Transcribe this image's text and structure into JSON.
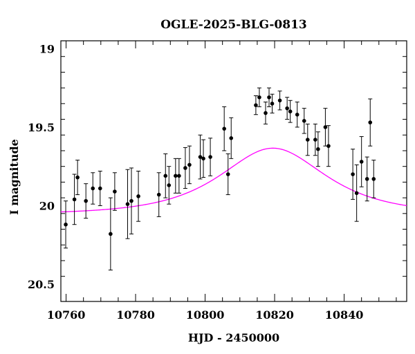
{
  "chart_data": {
    "type": "scatter",
    "title": "OGLE-2025-BLG-0813",
    "xlabel": "HJD - 2450000",
    "ylabel": "I magnitude",
    "xlim": [
      10758.5,
      10858
    ],
    "ylim": [
      20.61,
      18.95
    ],
    "y_inverted": true,
    "grid": false,
    "x_ticks": [
      10760,
      10780,
      10800,
      10820,
      10840
    ],
    "y_ticks": [
      19,
      19.5,
      20,
      20.5
    ],
    "x_tick_labels": [
      "10760",
      "10780",
      "10800",
      "10820",
      "10840"
    ],
    "y_tick_labels": [
      "19",
      "19.5",
      "20",
      "20.5"
    ],
    "colors": {
      "points": "#000000",
      "model": "#ff00ff"
    },
    "series": [
      {
        "kind": "points",
        "x": [
          10759.9,
          10762.4,
          10763.3,
          10765.7,
          10767.7,
          10769.8,
          10772.8,
          10774.0,
          10777.7,
          10778.8,
          10780.8,
          10786.7,
          10788.6,
          10789.6,
          10791.5,
          10792.5,
          10794.3,
          10795.5,
          10798.6,
          10799.5,
          10801.5,
          10805.5,
          10806.6,
          10807.5,
          10814.6,
          10815.6,
          10817.4,
          10818.4,
          10819.3,
          10821.5,
          10823.6,
          10824.5,
          10826.5,
          10828.5,
          10829.5,
          10831.7,
          10832.5,
          10834.6,
          10835.5,
          10842.5,
          10843.6,
          10845.0,
          10846.6,
          10847.5,
          10848.5
        ],
        "y": [
          20.12,
          19.96,
          19.82,
          19.97,
          19.89,
          19.89,
          20.18,
          19.91,
          19.99,
          19.97,
          19.94,
          19.93,
          19.81,
          19.87,
          19.81,
          19.81,
          19.76,
          19.74,
          19.69,
          19.7,
          19.69,
          19.51,
          19.8,
          19.57,
          19.36,
          19.31,
          19.41,
          19.31,
          19.35,
          19.33,
          19.38,
          19.4,
          19.42,
          19.46,
          19.58,
          19.58,
          19.64,
          19.5,
          19.62,
          19.8,
          19.92,
          19.72,
          19.83,
          19.47,
          19.83
        ],
        "err": [
          0.15,
          0.16,
          0.11,
          0.11,
          0.1,
          0.11,
          0.23,
          0.12,
          0.22,
          0.21,
          0.16,
          0.14,
          0.14,
          0.12,
          0.11,
          0.11,
          0.13,
          0.12,
          0.14,
          0.12,
          0.12,
          0.14,
          0.13,
          0.13,
          0.06,
          0.06,
          0.07,
          0.06,
          0.06,
          0.06,
          0.07,
          0.07,
          0.08,
          0.08,
          0.1,
          0.1,
          0.11,
          0.12,
          0.13,
          0.16,
          0.18,
          0.16,
          0.14,
          0.15,
          0.12
        ]
      },
      {
        "kind": "model",
        "t0": 10819.5,
        "u0": 0.85,
        "tE": 20.0,
        "baseline": 20.055
      }
    ]
  }
}
